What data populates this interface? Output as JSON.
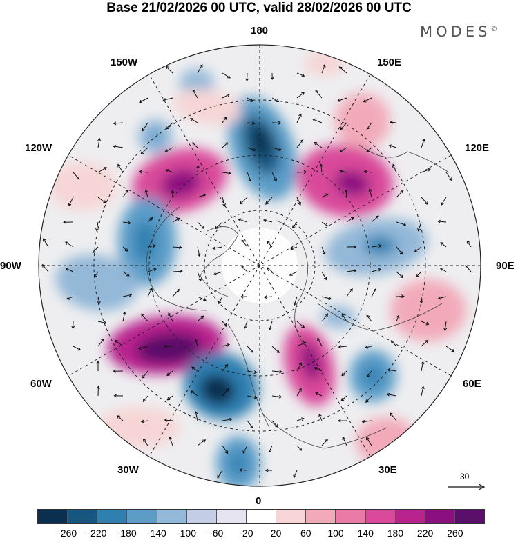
{
  "title": "Base 21/02/2026 00 UTC, valid 28/02/2026 00 UTC",
  "brand": {
    "name": "MODES",
    "mark": "©"
  },
  "longitude_labels": {
    "lon_180": "180",
    "lon_150E": "150E",
    "lon_120E": "120E",
    "lon_90E": "90E",
    "lon_60E": "60E",
    "lon_30E": "30E",
    "lon_0": "0",
    "lon_30W": "30W",
    "lon_60W": "60W",
    "lon_90W": "90W",
    "lon_120W": "120W",
    "lon_150W": "150W"
  },
  "wind_scale": {
    "value": "30"
  },
  "colorbar": {
    "colors": [
      "#0d2f4f",
      "#17567f",
      "#2f7fb1",
      "#5c9dc8",
      "#93b8d8",
      "#c3cde3",
      "#e6e4f0",
      "#ffffff",
      "#f7d5d6",
      "#f2aab9",
      "#e97aa5",
      "#d9499a",
      "#b8238d",
      "#8c0f80",
      "#5a0f6b"
    ],
    "ticks": [
      "-260",
      "-220",
      "-180",
      "-140",
      "-100",
      "-60",
      "-20",
      "20",
      "60",
      "100",
      "140",
      "180",
      "220",
      "260"
    ]
  }
}
